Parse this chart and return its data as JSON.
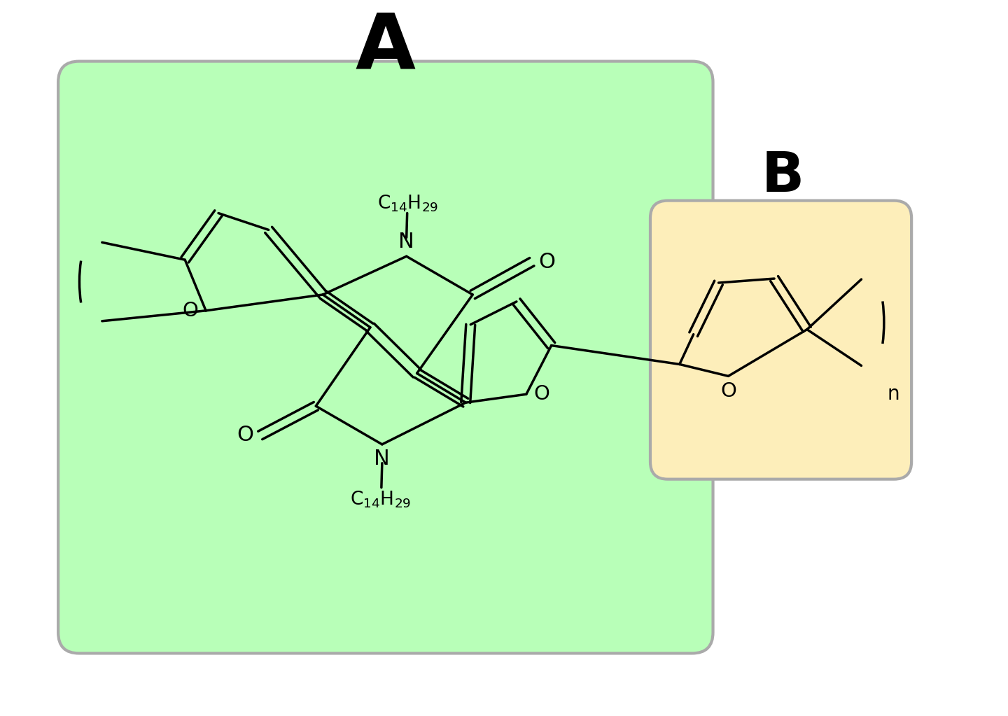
{
  "bg_color": "#ffffff",
  "box_A_color": "#b8ffb8",
  "box_A_edge_color": "#aaaaaa",
  "box_B_color": "#fdeeba",
  "box_B_edge_color": "#aaaaaa",
  "label_A": "A",
  "label_B": "B",
  "label_n": "n",
  "linewidth": 2.5
}
